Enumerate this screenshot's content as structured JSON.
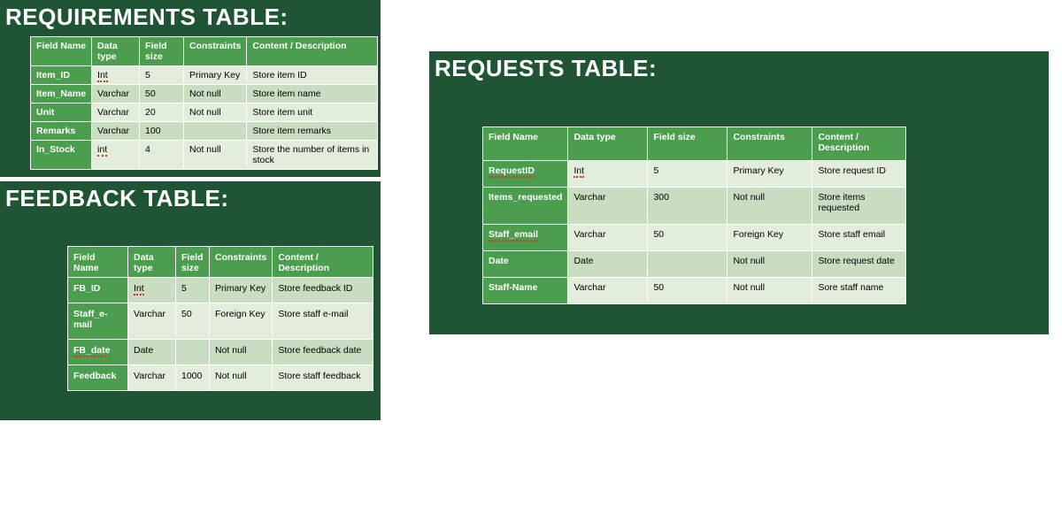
{
  "colors": {
    "panel_bg": "#1f5434",
    "header_bg": "#4a9e4d",
    "row_light": "#e2eedb",
    "row_dark": "#c9ddc1",
    "text_header": "#ffffff",
    "spell_underline": "#e03030",
    "page_bg": "#ffffff"
  },
  "tables": {
    "requirements": {
      "title": "REQUIREMENTS TABLE:",
      "columns": [
        "Field Name",
        "Data type",
        "Field size",
        "Constraints",
        "Content / Description"
      ],
      "rows": [
        {
          "fn": "Item_ID",
          "dt": "Int",
          "dt_sp": true,
          "fs": "5",
          "c": "Primary Key",
          "d": "Store item ID",
          "shade": "rlight"
        },
        {
          "fn": "Item_Name",
          "dt": "Varchar",
          "fs": "50",
          "c": "Not null",
          "d": "Store item name",
          "shade": "rdark"
        },
        {
          "fn": "Unit",
          "dt": "Varchar",
          "fs": "20",
          "c": "Not null",
          "d": "Store item unit",
          "shade": "rlight"
        },
        {
          "fn": "Remarks",
          "dt": "Varchar",
          "fs": "100",
          "c": "",
          "d": "Store item remarks",
          "shade": "rdark"
        },
        {
          "fn": "In_Stock",
          "dt": "int",
          "dt_sp": true,
          "fs": "4",
          "c": "Not null",
          "d": "Store the number of items in stock",
          "shade": "rlight"
        }
      ]
    },
    "feedback": {
      "title": "FEEDBACK TABLE:",
      "columns": [
        "Field Name",
        "Data type",
        "Field size",
        "Constraints",
        "Content / Description"
      ],
      "rows": [
        {
          "fn": "FB_ID",
          "dt": "Int",
          "dt_sp": true,
          "fs": "5",
          "c": "Primary Key",
          "d": "Store feedback ID",
          "shade": "rdark"
        },
        {
          "fn": "Staff_e-mail",
          "dt": "Varchar",
          "fs": "50",
          "c": "Foreign Key",
          "d": "Store staff e-mail",
          "shade": "rlight"
        },
        {
          "fn": "FB_date",
          "fn_sp": true,
          "dt": "Date",
          "fs": "",
          "c": "Not null",
          "d": "Store feedback date",
          "shade": "rdark"
        },
        {
          "fn": "Feedback",
          "dt": "Varchar",
          "fs": "1000",
          "c": "Not null",
          "d": "Store staff feedback",
          "shade": "rlight"
        }
      ]
    },
    "requests": {
      "title": "REQUESTS TABLE:",
      "columns": [
        "Field Name",
        "Data type",
        "Field size",
        "Constraints",
        "Content / Description"
      ],
      "rows": [
        {
          "fn": "RequestID",
          "fn_sp": true,
          "dt": "Int",
          "dt_sp": true,
          "fs": "5",
          "c": "Primary Key",
          "d": "Store request ID",
          "shade": "rlight"
        },
        {
          "fn": "Items_requested",
          "dt": "Varchar",
          "fs": "300",
          "c": "Not null",
          "d": "Store items requested",
          "shade": "rdark"
        },
        {
          "fn": "Staff_email",
          "fn_sp": true,
          "dt": "Varchar",
          "fs": "50",
          "c": "Foreign Key",
          "d": "Store staff email",
          "shade": "rlight"
        },
        {
          "fn": "Date",
          "dt": "Date",
          "fs": "",
          "c": "Not null",
          "d": "Store request date",
          "shade": "rdark"
        },
        {
          "fn": "Staff-Name",
          "dt": "Varchar",
          "fs": "50",
          "c": "Not null",
          "d": "Sore staff name",
          "shade": "rlight"
        }
      ]
    }
  }
}
